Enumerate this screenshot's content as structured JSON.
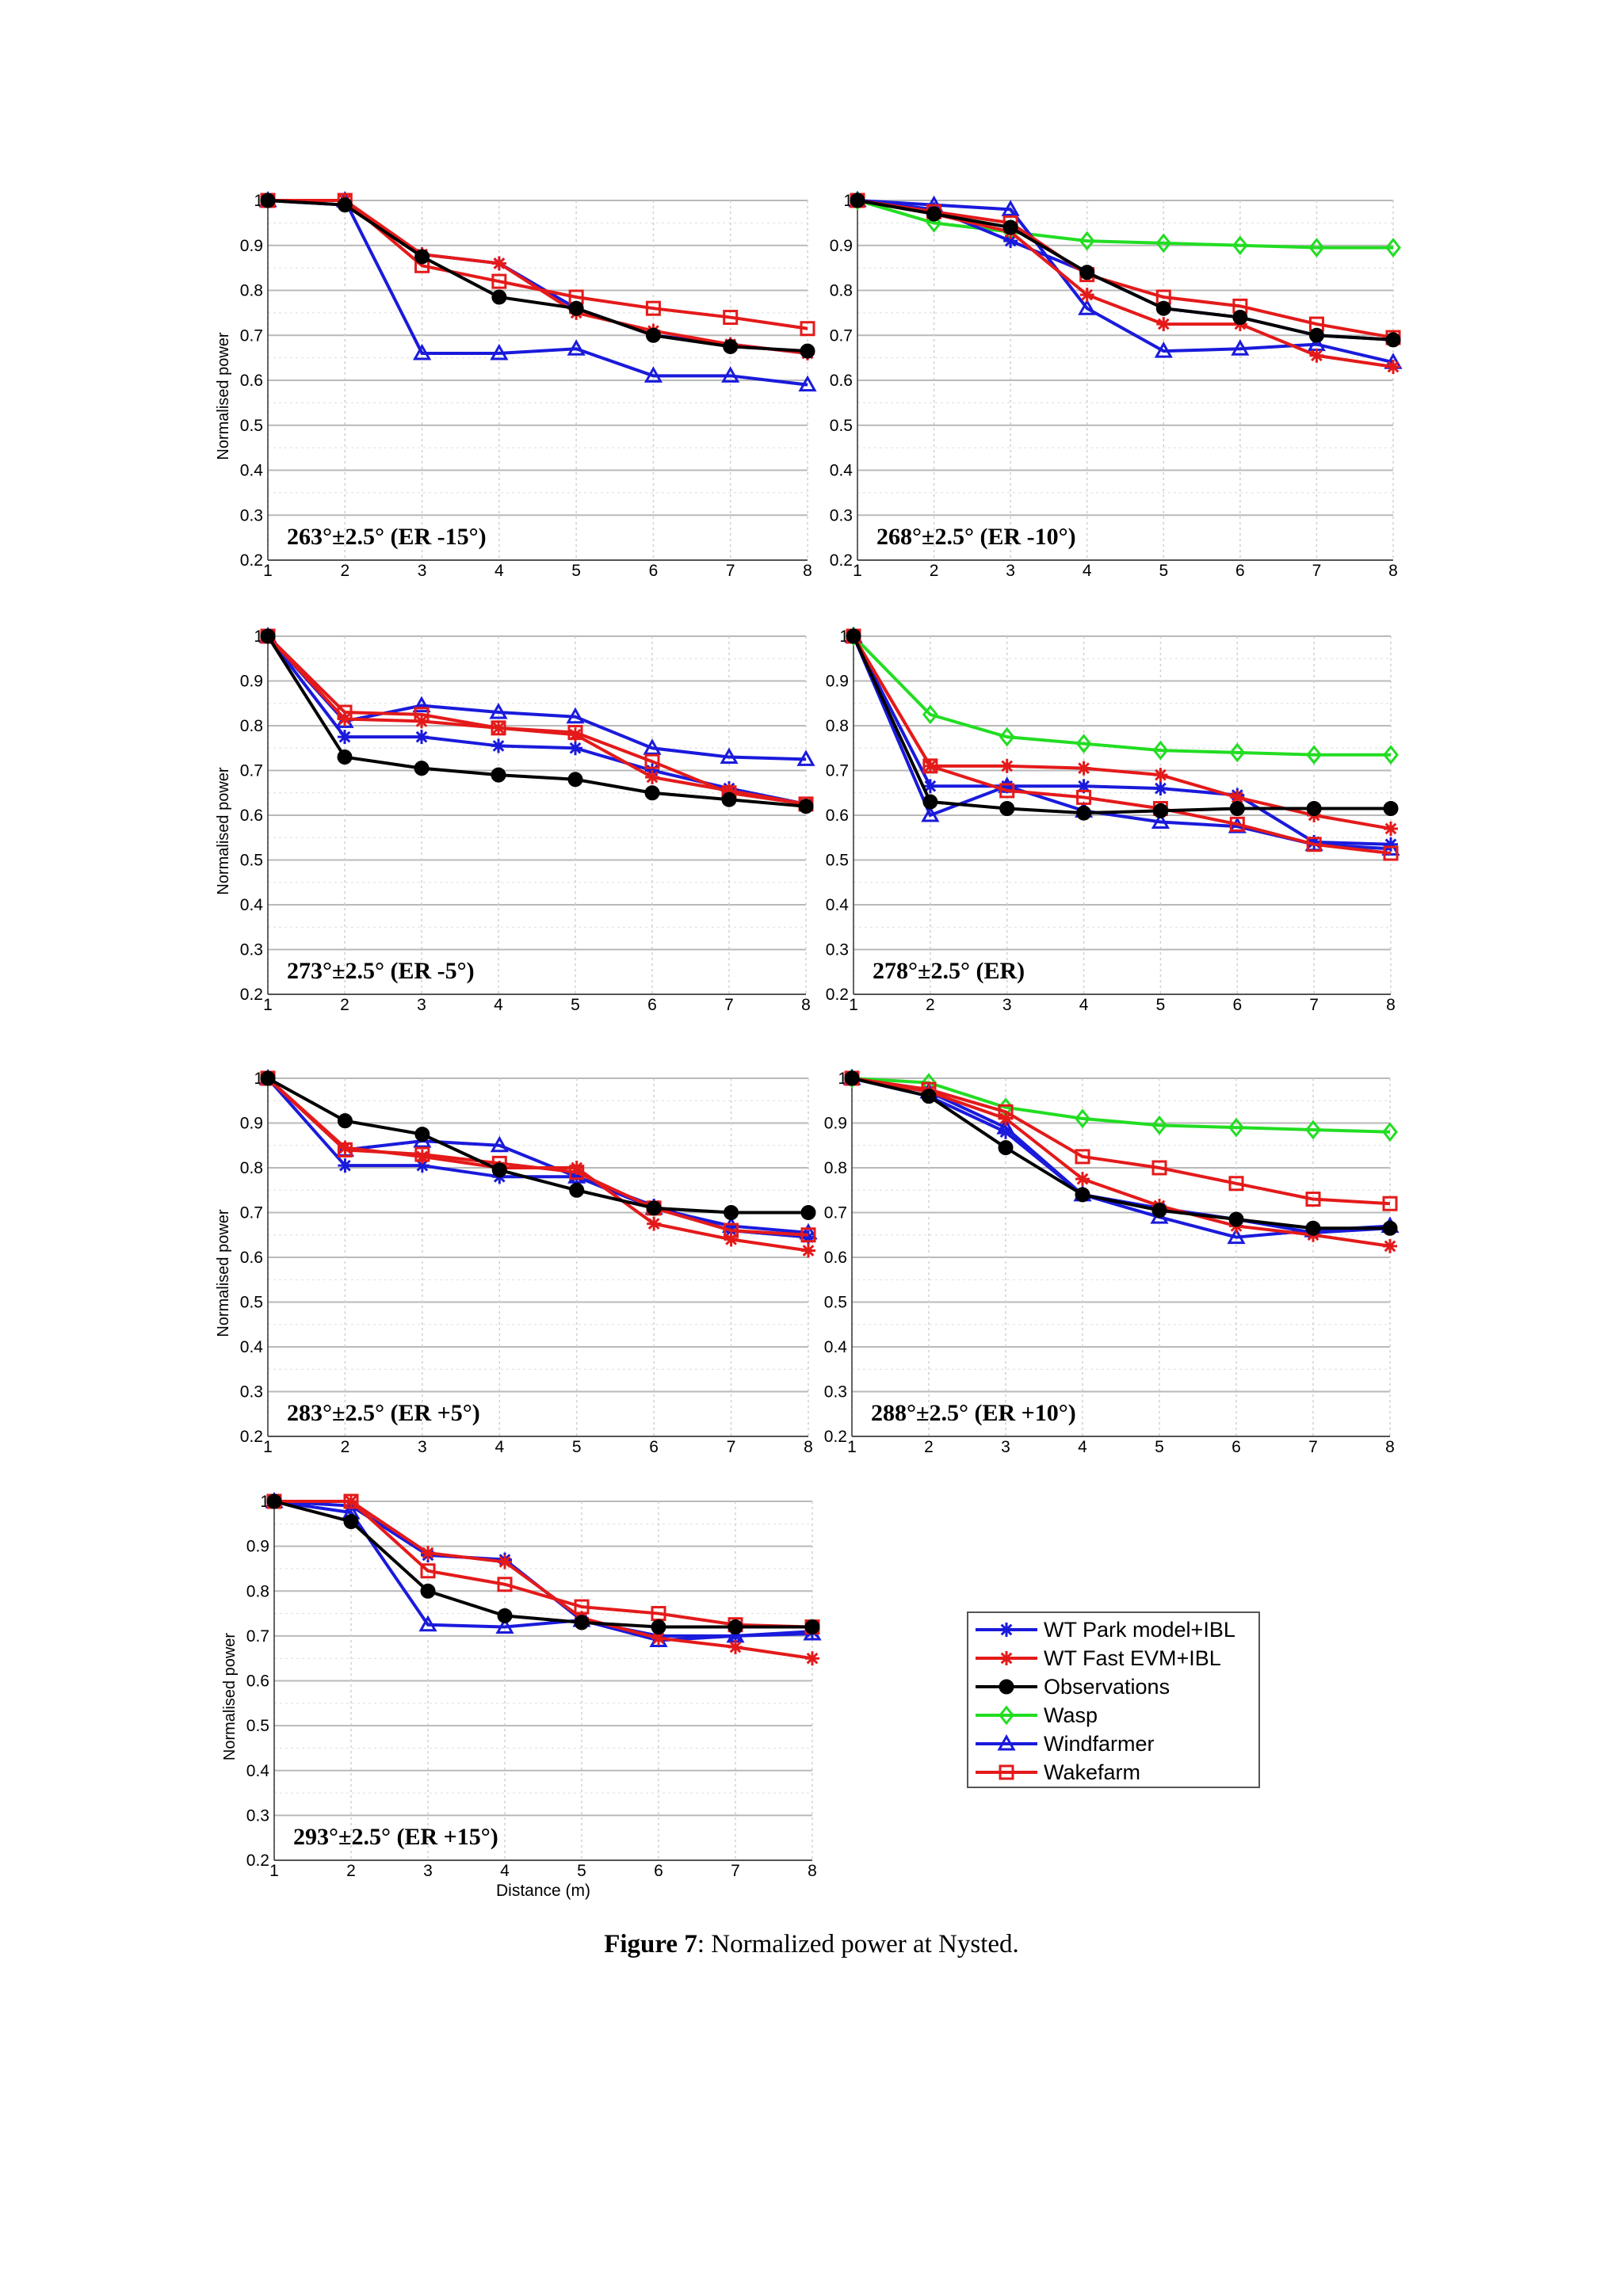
{
  "figure": {
    "caption_label": "Figure 7",
    "caption_text": ": Normalized power at Nysted."
  },
  "legend": {
    "entries": [
      {
        "name": "WT Park model+IBL",
        "color": "#1a1adc",
        "marker": "asterisk"
      },
      {
        "name": "WT Fast EVM+IBL",
        "color": "#e41a1a",
        "marker": "asterisk"
      },
      {
        "name": "Observations",
        "color": "#000000",
        "marker": "filled-circle"
      },
      {
        "name": "Wasp",
        "color": "#22dd22",
        "marker": "diamond"
      },
      {
        "name": "Windfarmer",
        "color": "#1a1adc",
        "marker": "triangle"
      },
      {
        "name": "Wakefarm",
        "color": "#e41a1a",
        "marker": "square"
      }
    ]
  },
  "chart_data": [
    {
      "type": "line",
      "label": "263°±2.5° (ER -15°)",
      "ylabel": "Normalised power",
      "xlabel": "",
      "xlim": [
        1,
        8
      ],
      "ylim": [
        0.2,
        1.0
      ],
      "x": [
        1,
        2,
        3,
        4,
        5,
        6,
        7,
        8
      ],
      "series": [
        {
          "name": "WT Park model+IBL",
          "values": [
            1.0,
            0.99,
            0.88,
            0.86,
            0.76,
            0.7,
            0.68,
            0.66
          ]
        },
        {
          "name": "WT Fast EVM+IBL",
          "values": [
            1.0,
            1.0,
            0.88,
            0.86,
            0.75,
            0.71,
            0.68,
            0.66
          ]
        },
        {
          "name": "Observations",
          "values": [
            1.0,
            0.99,
            0.875,
            0.785,
            0.76,
            0.7,
            0.675,
            0.665
          ]
        },
        {
          "name": "Windfarmer",
          "values": [
            1.0,
            1.0,
            0.66,
            0.66,
            0.67,
            0.61,
            0.61,
            0.59
          ]
        },
        {
          "name": "Wakefarm",
          "values": [
            1.0,
            1.0,
            0.855,
            0.82,
            0.785,
            0.76,
            0.74,
            0.715
          ]
        }
      ]
    },
    {
      "type": "line",
      "label": "268°±2.5° (ER -10°)",
      "ylabel": "",
      "xlabel": "",
      "xlim": [
        1,
        8
      ],
      "ylim": [
        0.2,
        1.0
      ],
      "x": [
        1,
        2,
        3,
        4,
        5,
        6,
        7,
        8
      ],
      "series": [
        {
          "name": "WT Park model+IBL",
          "values": [
            1.0,
            0.98,
            0.91,
            0.84,
            0.76,
            0.74,
            0.7,
            0.69
          ]
        },
        {
          "name": "WT Fast EVM+IBL",
          "values": [
            1.0,
            0.97,
            0.93,
            0.79,
            0.725,
            0.725,
            0.655,
            0.63
          ]
        },
        {
          "name": "Observations",
          "values": [
            1.0,
            0.97,
            0.94,
            0.84,
            0.76,
            0.74,
            0.7,
            0.69
          ]
        },
        {
          "name": "Wasp",
          "values": [
            1.0,
            0.95,
            0.93,
            0.91,
            0.905,
            0.9,
            0.895,
            0.895
          ]
        },
        {
          "name": "Windfarmer",
          "values": [
            1.0,
            0.99,
            0.98,
            0.76,
            0.665,
            0.67,
            0.68,
            0.64
          ]
        },
        {
          "name": "Wakefarm",
          "values": [
            1.0,
            0.975,
            0.95,
            0.835,
            0.785,
            0.765,
            0.725,
            0.695
          ]
        }
      ]
    },
    {
      "type": "line",
      "label": "273°±2.5° (ER -5°)",
      "ylabel": "Normalised power",
      "xlabel": "",
      "xlim": [
        1,
        8
      ],
      "ylim": [
        0.2,
        1.0
      ],
      "x": [
        1,
        2,
        3,
        4,
        5,
        6,
        7,
        8
      ],
      "series": [
        {
          "name": "WT Park model+IBL",
          "values": [
            1.0,
            0.775,
            0.775,
            0.755,
            0.75,
            0.7,
            0.66,
            0.625
          ]
        },
        {
          "name": "WT Fast EVM+IBL",
          "values": [
            1.0,
            0.815,
            0.81,
            0.795,
            0.78,
            0.685,
            0.655,
            0.625
          ]
        },
        {
          "name": "Observations",
          "values": [
            1.0,
            0.73,
            0.705,
            0.69,
            0.68,
            0.65,
            0.635,
            0.62
          ]
        },
        {
          "name": "Windfarmer",
          "values": [
            1.0,
            0.81,
            0.845,
            0.83,
            0.82,
            0.75,
            0.73,
            0.725
          ]
        },
        {
          "name": "Wakefarm",
          "values": [
            1.0,
            0.83,
            0.825,
            0.795,
            0.785,
            0.72,
            0.65,
            0.625
          ]
        }
      ]
    },
    {
      "type": "line",
      "label": "278°±2.5° (ER)",
      "ylabel": "",
      "xlabel": "",
      "xlim": [
        1,
        8
      ],
      "ylim": [
        0.2,
        1.0
      ],
      "x": [
        1,
        2,
        3,
        4,
        5,
        6,
        7,
        8
      ],
      "series": [
        {
          "name": "WT Park model+IBL",
          "values": [
            1.0,
            0.665,
            0.665,
            0.665,
            0.66,
            0.645,
            0.54,
            0.535
          ]
        },
        {
          "name": "WT Fast EVM+IBL",
          "values": [
            1.0,
            0.71,
            0.71,
            0.705,
            0.69,
            0.64,
            0.6,
            0.57
          ]
        },
        {
          "name": "Observations",
          "values": [
            1.0,
            0.63,
            0.615,
            0.605,
            0.61,
            0.615,
            0.615,
            0.615
          ]
        },
        {
          "name": "Wasp",
          "values": [
            1.0,
            0.825,
            0.775,
            0.76,
            0.745,
            0.74,
            0.735,
            0.735
          ]
        },
        {
          "name": "Windfarmer",
          "values": [
            1.0,
            0.6,
            0.665,
            0.61,
            0.585,
            0.575,
            0.535,
            0.525
          ]
        },
        {
          "name": "Wakefarm",
          "values": [
            1.0,
            0.71,
            0.655,
            0.64,
            0.615,
            0.58,
            0.535,
            0.515
          ]
        }
      ]
    },
    {
      "type": "line",
      "label": "283°±2.5° (ER +5°)",
      "ylabel": "Normalised power",
      "xlabel": "",
      "xlim": [
        1,
        8
      ],
      "ylim": [
        0.2,
        1.0
      ],
      "x": [
        1,
        2,
        3,
        4,
        5,
        6,
        7,
        8
      ],
      "series": [
        {
          "name": "WT Park model+IBL",
          "values": [
            1.0,
            0.805,
            0.805,
            0.78,
            0.78,
            0.715,
            0.66,
            0.645
          ]
        },
        {
          "name": "WT Fast EVM+IBL",
          "values": [
            1.0,
            0.845,
            0.825,
            0.8,
            0.8,
            0.675,
            0.64,
            0.615
          ]
        },
        {
          "name": "Observations",
          "values": [
            1.0,
            0.905,
            0.875,
            0.795,
            0.75,
            0.71,
            0.7,
            0.7
          ]
        },
        {
          "name": "Windfarmer",
          "values": [
            1.0,
            0.84,
            0.86,
            0.85,
            0.78,
            0.71,
            0.67,
            0.655
          ]
        },
        {
          "name": "Wakefarm",
          "values": [
            1.0,
            0.84,
            0.83,
            0.81,
            0.79,
            0.71,
            0.66,
            0.65
          ]
        }
      ]
    },
    {
      "type": "line",
      "label": "288°±2.5° (ER +10°)",
      "ylabel": "",
      "xlabel": "",
      "xlim": [
        1,
        8
      ],
      "ylim": [
        0.2,
        1.0
      ],
      "x": [
        1,
        2,
        3,
        4,
        5,
        6,
        7,
        8
      ],
      "series": [
        {
          "name": "WT Park model+IBL",
          "values": [
            1.0,
            0.96,
            0.88,
            0.74,
            0.71,
            0.685,
            0.655,
            0.665
          ]
        },
        {
          "name": "WT Fast EVM+IBL",
          "values": [
            1.0,
            0.97,
            0.91,
            0.775,
            0.715,
            0.67,
            0.65,
            0.625
          ]
        },
        {
          "name": "Observations",
          "values": [
            1.0,
            0.96,
            0.845,
            0.74,
            0.705,
            0.685,
            0.665,
            0.665
          ]
        },
        {
          "name": "Wasp",
          "values": [
            1.0,
            0.99,
            0.935,
            0.91,
            0.895,
            0.89,
            0.885,
            0.88
          ]
        },
        {
          "name": "Windfarmer",
          "values": [
            1.0,
            0.97,
            0.89,
            0.74,
            0.69,
            0.645,
            0.66,
            0.67
          ]
        },
        {
          "name": "Wakefarm",
          "values": [
            1.0,
            0.975,
            0.925,
            0.825,
            0.8,
            0.765,
            0.73,
            0.72
          ]
        }
      ]
    },
    {
      "type": "line",
      "label": "293°±2.5° (ER +15°)",
      "ylabel": "Normalised power",
      "xlabel": "Distance (m)",
      "xlim": [
        1,
        8
      ],
      "ylim": [
        0.2,
        1.0
      ],
      "x": [
        1,
        2,
        3,
        4,
        5,
        6,
        7,
        8
      ],
      "series": [
        {
          "name": "WT Park model+IBL",
          "values": [
            1.0,
            0.99,
            0.88,
            0.87,
            0.735,
            0.7,
            0.7,
            0.71
          ]
        },
        {
          "name": "WT Fast EVM+IBL",
          "values": [
            1.0,
            1.0,
            0.885,
            0.865,
            0.74,
            0.695,
            0.675,
            0.65
          ]
        },
        {
          "name": "Observations",
          "values": [
            1.0,
            0.955,
            0.8,
            0.745,
            0.73,
            0.72,
            0.72,
            0.72
          ]
        },
        {
          "name": "Windfarmer",
          "values": [
            1.0,
            0.975,
            0.725,
            0.72,
            0.735,
            0.69,
            0.7,
            0.705
          ]
        },
        {
          "name": "Wakefarm",
          "values": [
            1.0,
            1.0,
            0.845,
            0.815,
            0.765,
            0.75,
            0.725,
            0.72
          ]
        }
      ]
    }
  ]
}
